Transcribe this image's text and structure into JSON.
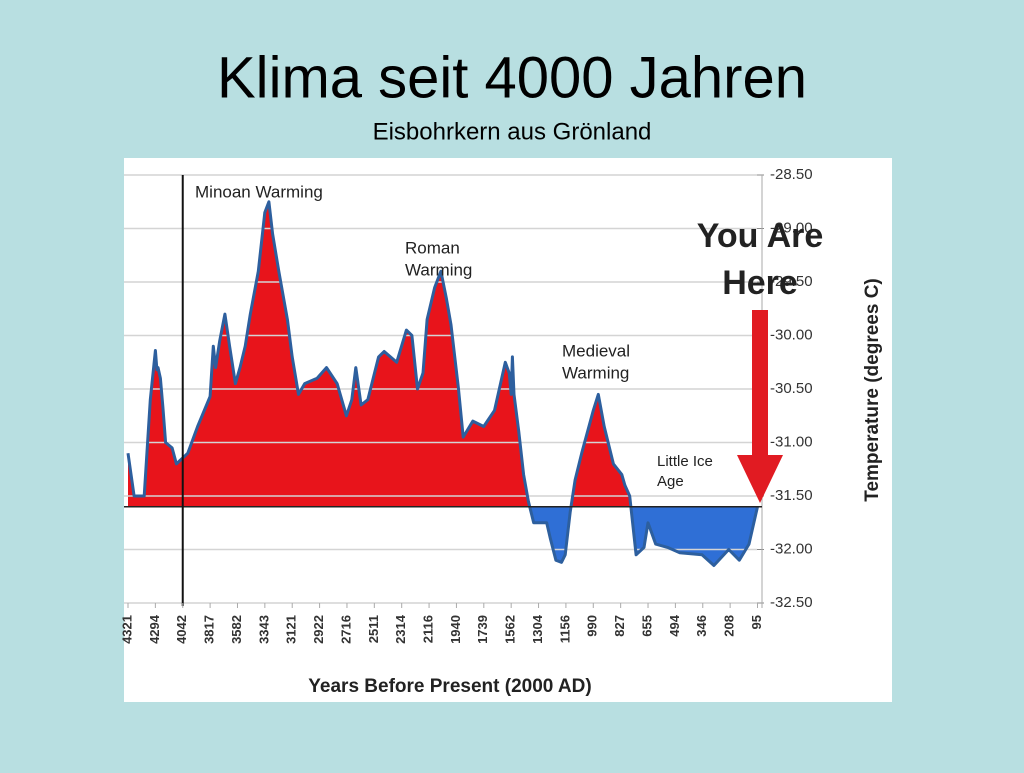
{
  "chart_data": {
    "type": "area",
    "title": "Klima seit 4000 Jahren",
    "subtitle": "Eisbohrkern aus Grönland",
    "x_label": "Years Before Present (2000 AD)",
    "y_label": "Temperature (degrees C)",
    "xticks": [
      4321,
      4294,
      4042,
      3817,
      3582,
      3343,
      3121,
      2922,
      2716,
      2511,
      2314,
      2116,
      1940,
      1739,
      1562,
      1304,
      1156,
      990,
      827,
      655,
      494,
      346,
      208,
      95
    ],
    "ylim": [
      -32.5,
      -28.5
    ],
    "yticks": [
      {
        "value": -28.5,
        "label": "-28.50"
      },
      {
        "value": -29,
        "label": "-29.00"
      },
      {
        "value": -29.5,
        "label": "-29.50"
      },
      {
        "value": -30,
        "label": "-30.00"
      },
      {
        "value": -30.5,
        "label": "-30.50"
      },
      {
        "value": -31,
        "label": "-31.00"
      },
      {
        "value": -31.5,
        "label": "-31.50"
      },
      {
        "value": -32,
        "label": "-32.00"
      },
      {
        "value": -32.5,
        "label": "-32.50"
      }
    ],
    "grid": true,
    "baseline": -31.6,
    "vline": 4042,
    "above_color": "#e8141b",
    "below_color": "#2f6fd6",
    "x": [
      4321,
      4315,
      4305,
      4299,
      4294,
      4280,
      4270,
      4248,
      4225,
      4200,
      4140,
      4100,
      4000,
      3920,
      3817,
      3790,
      3770,
      3735,
      3690,
      3650,
      3600,
      3560,
      3515,
      3470,
      3400,
      3343,
      3310,
      3280,
      3230,
      3160,
      3121,
      3075,
      3030,
      2940,
      2870,
      2790,
      2720,
      2680,
      2650,
      2610,
      2560,
      2480,
      2440,
      2350,
      2280,
      2240,
      2200,
      2160,
      2130,
      2080,
      2040,
      2005,
      1975,
      1925,
      1890,
      1820,
      1740,
      1670,
      1600,
      1575,
      1562,
      1550,
      1535,
      1490,
      1445,
      1400,
      1350,
      1260,
      1240,
      1210,
      1180,
      1160,
      1130,
      1100,
      1060,
      990,
      960,
      925,
      870,
      820,
      800,
      770,
      730,
      680,
      655,
      610,
      540,
      470,
      350,
      290,
      215,
      170,
      130,
      95
    ],
    "series": [
      {
        "name": "Temperature",
        "color": "#2d5f9e",
        "values": [
          -31.1,
          -31.5,
          -31.5,
          -30.6,
          -30.14,
          -30.32,
          -30.3,
          -30.4,
          -30.67,
          -31.0,
          -31.05,
          -31.2,
          -31.1,
          -30.85,
          -30.57,
          -30.1,
          -30.3,
          -30.05,
          -29.8,
          -30.1,
          -30.45,
          -30.3,
          -30.1,
          -29.8,
          -29.4,
          -28.85,
          -28.75,
          -29.05,
          -29.4,
          -29.85,
          -30.2,
          -30.55,
          -30.45,
          -30.4,
          -30.3,
          -30.45,
          -30.75,
          -30.6,
          -30.3,
          -30.65,
          -30.6,
          -30.2,
          -30.15,
          -30.25,
          -29.95,
          -30.0,
          -30.5,
          -30.35,
          -29.85,
          -29.55,
          -29.4,
          -29.65,
          -29.9,
          -30.5,
          -30.95,
          -30.8,
          -30.85,
          -30.7,
          -30.25,
          -30.35,
          -30.55,
          -30.2,
          -30.55,
          -30.9,
          -31.3,
          -31.55,
          -31.75,
          -31.75,
          -31.9,
          -32.1,
          -32.12,
          -32.05,
          -31.65,
          -31.35,
          -31.1,
          -30.7,
          -30.55,
          -30.85,
          -31.2,
          -31.3,
          -31.4,
          -31.5,
          -32.05,
          -31.98,
          -31.75,
          -31.95,
          -31.98,
          -32.03,
          -32.05,
          -32.15,
          -32.0,
          -32.1,
          -31.95,
          -31.6
        ]
      }
    ],
    "annotations": [
      {
        "lines": [
          "Minoan Warming"
        ]
      },
      {
        "lines": [
          "Roman",
          "Warming"
        ]
      },
      {
        "lines": [
          "Medieval",
          "Warming"
        ]
      },
      {
        "lines": [
          "Little Ice",
          "Age"
        ]
      },
      {
        "lines": [
          "You Are",
          "Here"
        ]
      }
    ]
  }
}
